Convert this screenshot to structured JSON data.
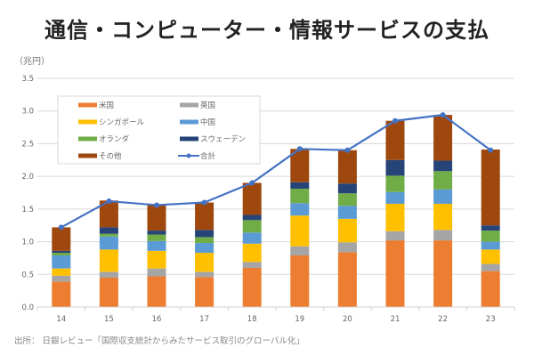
{
  "title": "通信・コンピューター・情報サービスの支払",
  "unit_label": "（兆円）",
  "source": "出所： 日銀レビュー「国際収支統計からみたサービス取引のグローバル化」",
  "chart_data": {
    "type": "bar",
    "stacked": true,
    "title": "通信・コンピューター・情報サービスの支払",
    "xlabel": "",
    "ylabel": "兆円",
    "ylim": [
      0,
      3.5
    ],
    "yticks": [
      "0.0",
      "0.5",
      "1.0",
      "1.5",
      "2.0",
      "2.5",
      "3.0",
      "3.5"
    ],
    "ytick_values": [
      0,
      0.5,
      1.0,
      1.5,
      2.0,
      2.5,
      3.0,
      3.5
    ],
    "grid": true,
    "legend_position": "top-left",
    "categories": [
      "14",
      "15",
      "16",
      "17",
      "18",
      "19",
      "20",
      "21",
      "22",
      "23"
    ],
    "series": [
      {
        "name": "米国",
        "color": "#ED7D31",
        "values": [
          0.39,
          0.45,
          0.47,
          0.46,
          0.6,
          0.79,
          0.84,
          1.02,
          1.02,
          0.55
        ]
      },
      {
        "name": "英国",
        "color": "#A5A5A5",
        "values": [
          0.09,
          0.09,
          0.12,
          0.08,
          0.09,
          0.14,
          0.15,
          0.14,
          0.16,
          0.11
        ]
      },
      {
        "name": "シンガポール",
        "color": "#FFC000",
        "values": [
          0.11,
          0.34,
          0.27,
          0.29,
          0.28,
          0.47,
          0.36,
          0.42,
          0.4,
          0.22
        ]
      },
      {
        "name": "中国",
        "color": "#5B9BD5",
        "values": [
          0.2,
          0.2,
          0.15,
          0.15,
          0.17,
          0.19,
          0.2,
          0.18,
          0.22,
          0.12
        ]
      },
      {
        "name": "オランダ",
        "color": "#70AD47",
        "values": [
          0.04,
          0.04,
          0.1,
          0.09,
          0.19,
          0.22,
          0.19,
          0.25,
          0.28,
          0.17
        ]
      },
      {
        "name": "スウェーデン",
        "color": "#264478",
        "values": [
          0.03,
          0.1,
          0.06,
          0.11,
          0.08,
          0.1,
          0.15,
          0.24,
          0.16,
          0.08
        ]
      },
      {
        "name": "その他",
        "color": "#9E480E",
        "values": [
          0.36,
          0.41,
          0.39,
          0.42,
          0.49,
          0.51,
          0.51,
          0.6,
          0.7,
          1.16
        ]
      }
    ],
    "line_series": {
      "name": "合計",
      "color": "#4472C4",
      "values": [
        1.22,
        1.62,
        1.56,
        1.6,
        1.9,
        2.42,
        2.4,
        2.85,
        2.94,
        2.4
      ]
    },
    "legend": [
      "米国",
      "英国",
      "シンガポール",
      "中国",
      "オランダ",
      "スウェーデン",
      "その他",
      "合計"
    ]
  }
}
